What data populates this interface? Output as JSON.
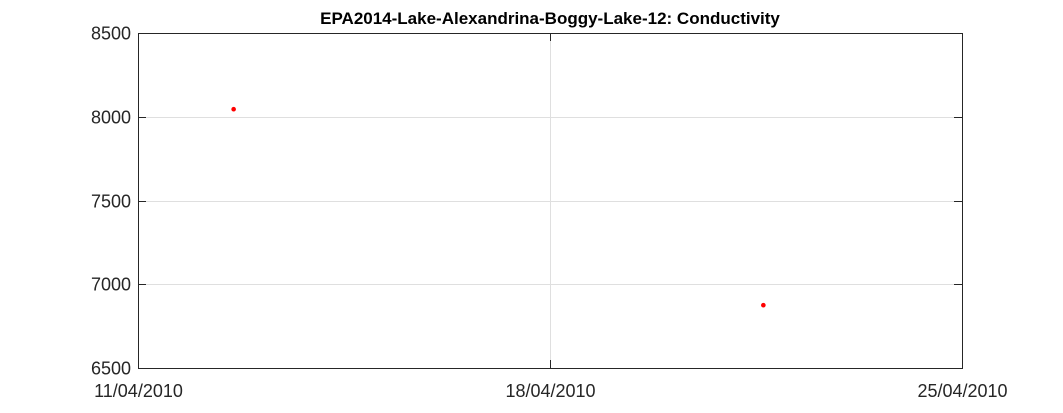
{
  "chart_data": {
    "type": "scatter",
    "title": "EPA2014-Lake-Alexandrina-Boggy-Lake-12: Conductivity",
    "xlabel": "",
    "ylabel": "",
    "x_axis_type": "date",
    "xlim": [
      "2010-04-11",
      "2010-04-25"
    ],
    "ylim": [
      6500,
      8500
    ],
    "x_ticks": [
      {
        "value": "2010-04-11",
        "label": "11/04/2010"
      },
      {
        "value": "2010-04-18",
        "label": "18/04/2010"
      },
      {
        "value": "2010-04-25",
        "label": "25/04/2010"
      }
    ],
    "y_ticks": [
      {
        "value": 6500,
        "label": "6500"
      },
      {
        "value": 7000,
        "label": "7000"
      },
      {
        "value": 7500,
        "label": "7500"
      },
      {
        "value": 8000,
        "label": "8000"
      },
      {
        "value": 8500,
        "label": "8500"
      }
    ],
    "grid": true,
    "series": [
      {
        "color": "#ff0000",
        "points": [
          {
            "x": "2010-04-12T15:00",
            "y": 8045
          },
          {
            "x": "2010-04-21T15:00",
            "y": 6875
          }
        ]
      }
    ]
  }
}
